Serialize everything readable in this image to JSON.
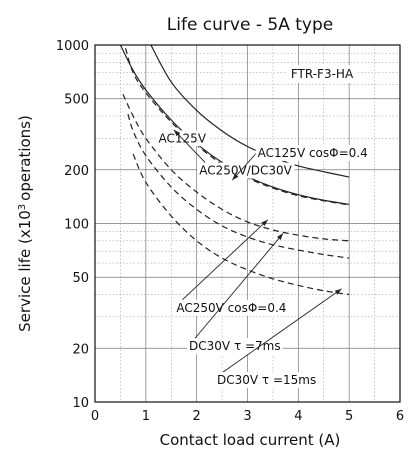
{
  "chart_data": {
    "type": "line",
    "title": "Life curve - 5A type",
    "xlabel": "Contact load current (A)",
    "ylabel": "Service life (x10^3 operations)",
    "ylabel_parts": {
      "pre": "Service life (x10",
      "sup": "3",
      "post": "operations)"
    },
    "x_scale": "linear",
    "y_scale": "log",
    "xlim": [
      0,
      6
    ],
    "ylim": [
      10,
      1000
    ],
    "x_ticks": [
      "0",
      "1",
      "2",
      "3",
      "4",
      "5",
      "6"
    ],
    "y_ticks": [
      "10",
      "20",
      "50",
      "100",
      "200",
      "500",
      "1000"
    ],
    "grid": true,
    "legend_box": "FTR-F3-HA",
    "series": [
      {
        "style": "solid",
        "x": [
          1.1,
          1.5,
          2,
          2.5,
          3,
          3.5,
          4,
          4.5,
          5
        ],
        "y": [
          1000,
          620,
          430,
          330,
          270,
          235,
          210,
          195,
          182
        ]
      },
      {
        "style": "solid",
        "x": [
          0.5,
          0.75,
          1,
          1.5,
          2,
          2.5,
          3,
          3.5,
          4,
          4.5,
          5
        ],
        "y": [
          1000,
          720,
          560,
          380,
          280,
          220,
          183,
          160,
          145,
          135,
          128
        ]
      },
      {
        "style": "dashed",
        "x": [
          0.6,
          0.75,
          1,
          1.5,
          2,
          2.5,
          3,
          3.5,
          4,
          4.5,
          5
        ],
        "y": [
          960,
          700,
          540,
          370,
          275,
          215,
          180,
          158,
          143,
          134,
          127
        ]
      },
      {
        "style": "dashed",
        "x": [
          0.55,
          0.75,
          1,
          1.5,
          2,
          2.5,
          3,
          3.5,
          4,
          4.5,
          5
        ],
        "y": [
          530,
          400,
          300,
          200,
          150,
          120,
          102,
          92,
          86,
          82,
          80
        ]
      },
      {
        "style": "dashed",
        "x": [
          0.65,
          0.75,
          1,
          1.5,
          2,
          2.5,
          3,
          3.5,
          4,
          4.5,
          5
        ],
        "y": [
          410,
          330,
          240,
          160,
          120,
          97,
          84,
          76,
          71,
          67,
          64
        ]
      },
      {
        "style": "dashed",
        "x": [
          0.75,
          1,
          1.5,
          2,
          2.5,
          3,
          3.5,
          4,
          4.5,
          5
        ],
        "y": [
          245,
          170,
          110,
          80,
          64,
          55,
          49,
          45,
          42,
          40
        ]
      }
    ],
    "annotations": [
      {
        "text": "AC125V",
        "x": 1.25,
        "y": 285,
        "anchor": "start",
        "arrow_to": null
      },
      {
        "text": "AC250V/DC30V",
        "x": 2.05,
        "y": 188,
        "anchor": "start",
        "arrow_to": [
          1.55,
          335
        ]
      },
      {
        "text": "AC125V cosΦ=0.4",
        "x": 3.2,
        "y": 236,
        "anchor": "start",
        "arrow_to": [
          2.7,
          175
        ]
      },
      {
        "text": "AC250V cosΦ=0.4",
        "x": 1.6,
        "y": 32,
        "anchor": "start",
        "arrow_to": [
          3.4,
          105
        ]
      },
      {
        "text": "DC30V  τ =7ms",
        "x": 1.85,
        "y": 19.5,
        "anchor": "start",
        "arrow_to": [
          3.7,
          88
        ]
      },
      {
        "text": "DC30V  τ =15ms",
        "x": 2.4,
        "y": 12.6,
        "anchor": "start",
        "arrow_to": [
          4.85,
          43
        ]
      }
    ]
  }
}
